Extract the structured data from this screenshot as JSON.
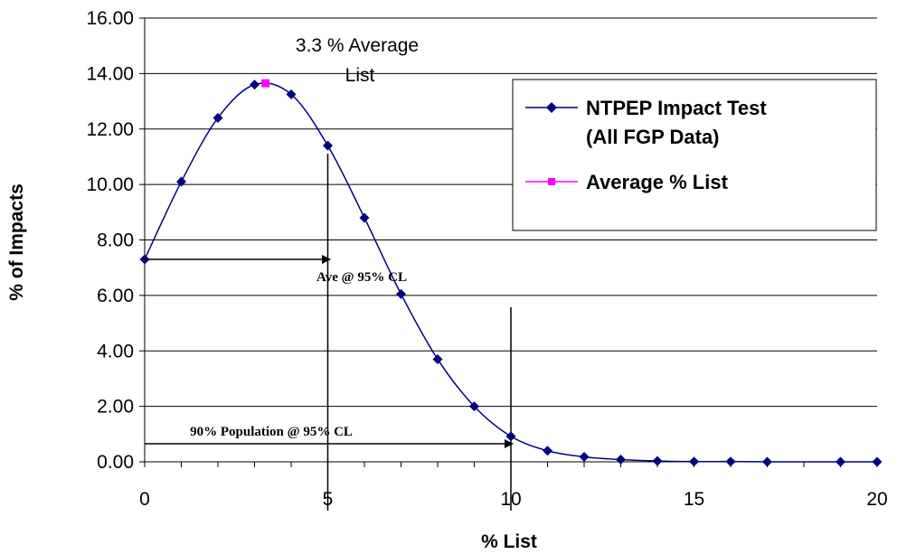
{
  "chart_data": {
    "type": "line",
    "xlabel": "% List",
    "ylabel": "% of Impacts",
    "xlim": [
      0,
      20
    ],
    "ylim": [
      0,
      16
    ],
    "x_ticks": [
      "0",
      "5",
      "10",
      "15",
      "20"
    ],
    "y_ticks": [
      "0.00",
      "2.00",
      "4.00",
      "6.00",
      "8.00",
      "10.00",
      "12.00",
      "14.00",
      "16.00"
    ],
    "grid": "horizontal",
    "legend_position": "upper-right",
    "series": [
      {
        "name": "NTPEP Impact Test (All FGP Data)",
        "color": "#000080",
        "marker": "diamond",
        "x": [
          0,
          1,
          2,
          3,
          4,
          5,
          6,
          7,
          8,
          9,
          10,
          11,
          12,
          13,
          14,
          15,
          16,
          17,
          19,
          20
        ],
        "y": [
          7.3,
          10.1,
          12.4,
          13.6,
          13.25,
          11.4,
          8.8,
          6.05,
          3.7,
          2.0,
          0.92,
          0.4,
          0.18,
          0.08,
          0.03,
          0.01,
          0.01,
          0.0,
          0.0,
          0.0
        ]
      },
      {
        "name": "Average % List",
        "color": "#ff00ff",
        "marker": "square",
        "x": [
          3.3
        ],
        "y": [
          13.65
        ]
      }
    ],
    "annotations": {
      "average_line1": "3.3 % Average",
      "average_line2": "List",
      "ave_cl": "Ave @ 95% CL",
      "population_cl": "90% Population @ 95% CL"
    },
    "reference_lines_x": [
      5,
      10
    ]
  }
}
